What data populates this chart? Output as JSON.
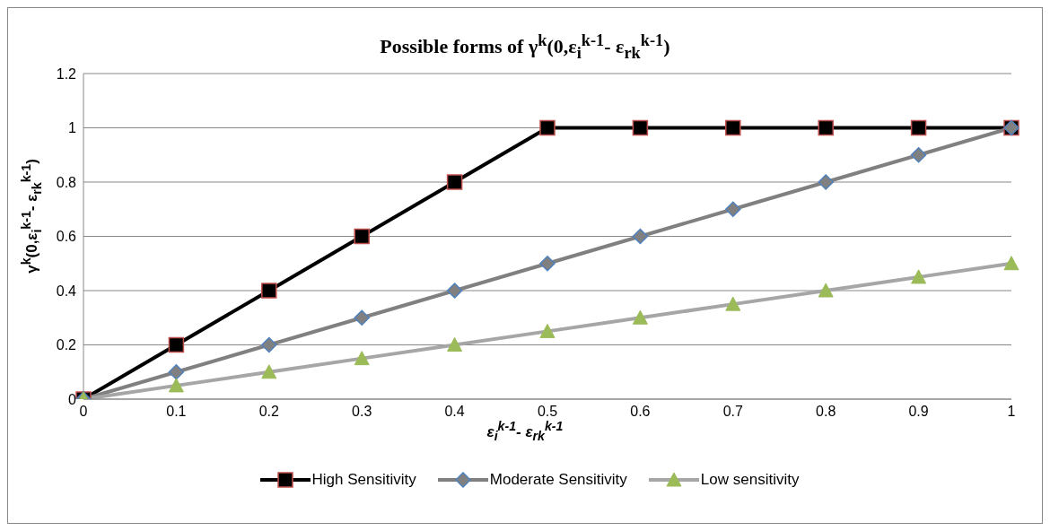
{
  "chart_data": {
    "type": "line",
    "title": "Possible forms of γ$^{k}$(0,ε$_{i}$$^{k-1}$- ε$_{rk}$$^{k-1}$)",
    "xlabel": "ε$_{i}$$^{k-1}$- ε$_{rk}$$^{k-1}$",
    "ylabel": "γ$^{k}$(0,ε$_{i}$$^{k-1}$- ε$_{rk}$$^{k-1}$)",
    "categories": [
      "0",
      "0.1",
      "0.2",
      "0.3",
      "0.4",
      "0.5",
      "0.6",
      "0.7",
      "0.8",
      "0.9",
      "1"
    ],
    "series": [
      {
        "name": "High Sensitivity",
        "color": "#000000",
        "marker": "square",
        "values": [
          0,
          0.2,
          0.4,
          0.6,
          0.8,
          1,
          1,
          1,
          1,
          1,
          1
        ]
      },
      {
        "name": "Moderate Sensitivity",
        "color": "#808080",
        "marker": "diamond",
        "values": [
          0,
          0.1,
          0.2,
          0.3,
          0.4,
          0.5,
          0.6,
          0.7,
          0.8,
          0.9,
          1
        ]
      },
      {
        "name": "Low sensitivity",
        "color": "#a6a6a6",
        "marker": "triangle",
        "values": [
          0,
          0.05,
          0.1,
          0.15,
          0.2,
          0.25,
          0.3,
          0.35,
          0.4,
          0.45,
          0.5
        ]
      }
    ],
    "ylim": [
      0,
      1.2
    ],
    "yticks": [
      0,
      0.2,
      0.4,
      0.6,
      0.8,
      1,
      1.2
    ],
    "grid": "y",
    "legend": "bottom",
    "line_style": "solid"
  }
}
